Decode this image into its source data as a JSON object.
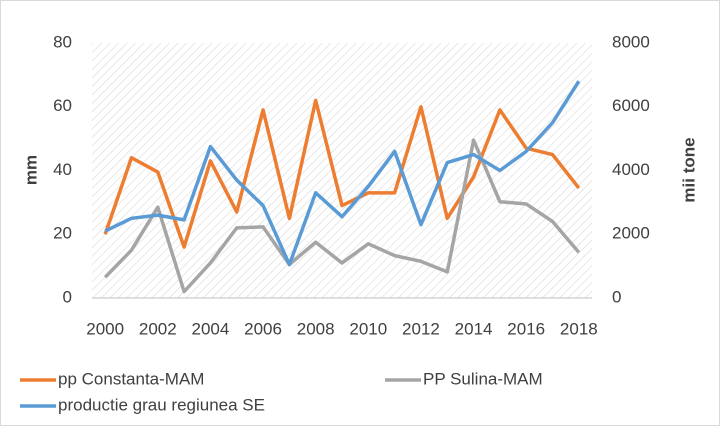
{
  "chart_data": {
    "type": "line",
    "categories": [
      "2000",
      null,
      "2002",
      null,
      "2004",
      null,
      "2006",
      null,
      "2008",
      null,
      "2010",
      null,
      "2012",
      null,
      "2014",
      null,
      "2016",
      null,
      "2018"
    ],
    "series": [
      {
        "name": "pp Constanta-MAM",
        "color": "#ED7D31",
        "values": [
          20,
          44,
          39.5,
          16,
          43,
          27,
          59,
          25,
          62,
          29,
          33,
          33,
          60,
          25,
          38,
          59,
          47,
          45,
          34.5
        ]
      },
      {
        "name": "PP Sulina-MAM",
        "color": "#A5A5A5",
        "values": [
          6.5,
          15,
          28.5,
          2,
          11,
          22,
          22.3,
          10.5,
          17.5,
          11,
          17,
          13.3,
          11.5,
          8.2,
          49.5,
          30.2,
          29.5,
          24,
          14.3
        ]
      },
      {
        "name": "productie grau regiunea SE",
        "color": "#5B9BD5",
        "axis": "y2",
        "values": [
          2100,
          2500,
          2600,
          2450,
          4750,
          3700,
          2900,
          1050,
          3300,
          2550,
          3500,
          4600,
          2300,
          4250,
          4500,
          4000,
          4600,
          5500,
          6800
        ]
      }
    ],
    "y_label": "mm",
    "y2_label": "mii tone",
    "ylim": [
      0,
      80
    ],
    "yticks": [
      0,
      20,
      40,
      60,
      80
    ],
    "y2lim": [
      0,
      8000
    ],
    "y2ticks": [
      0,
      2000,
      4000,
      6000,
      8000
    ],
    "legend": "bottom"
  }
}
